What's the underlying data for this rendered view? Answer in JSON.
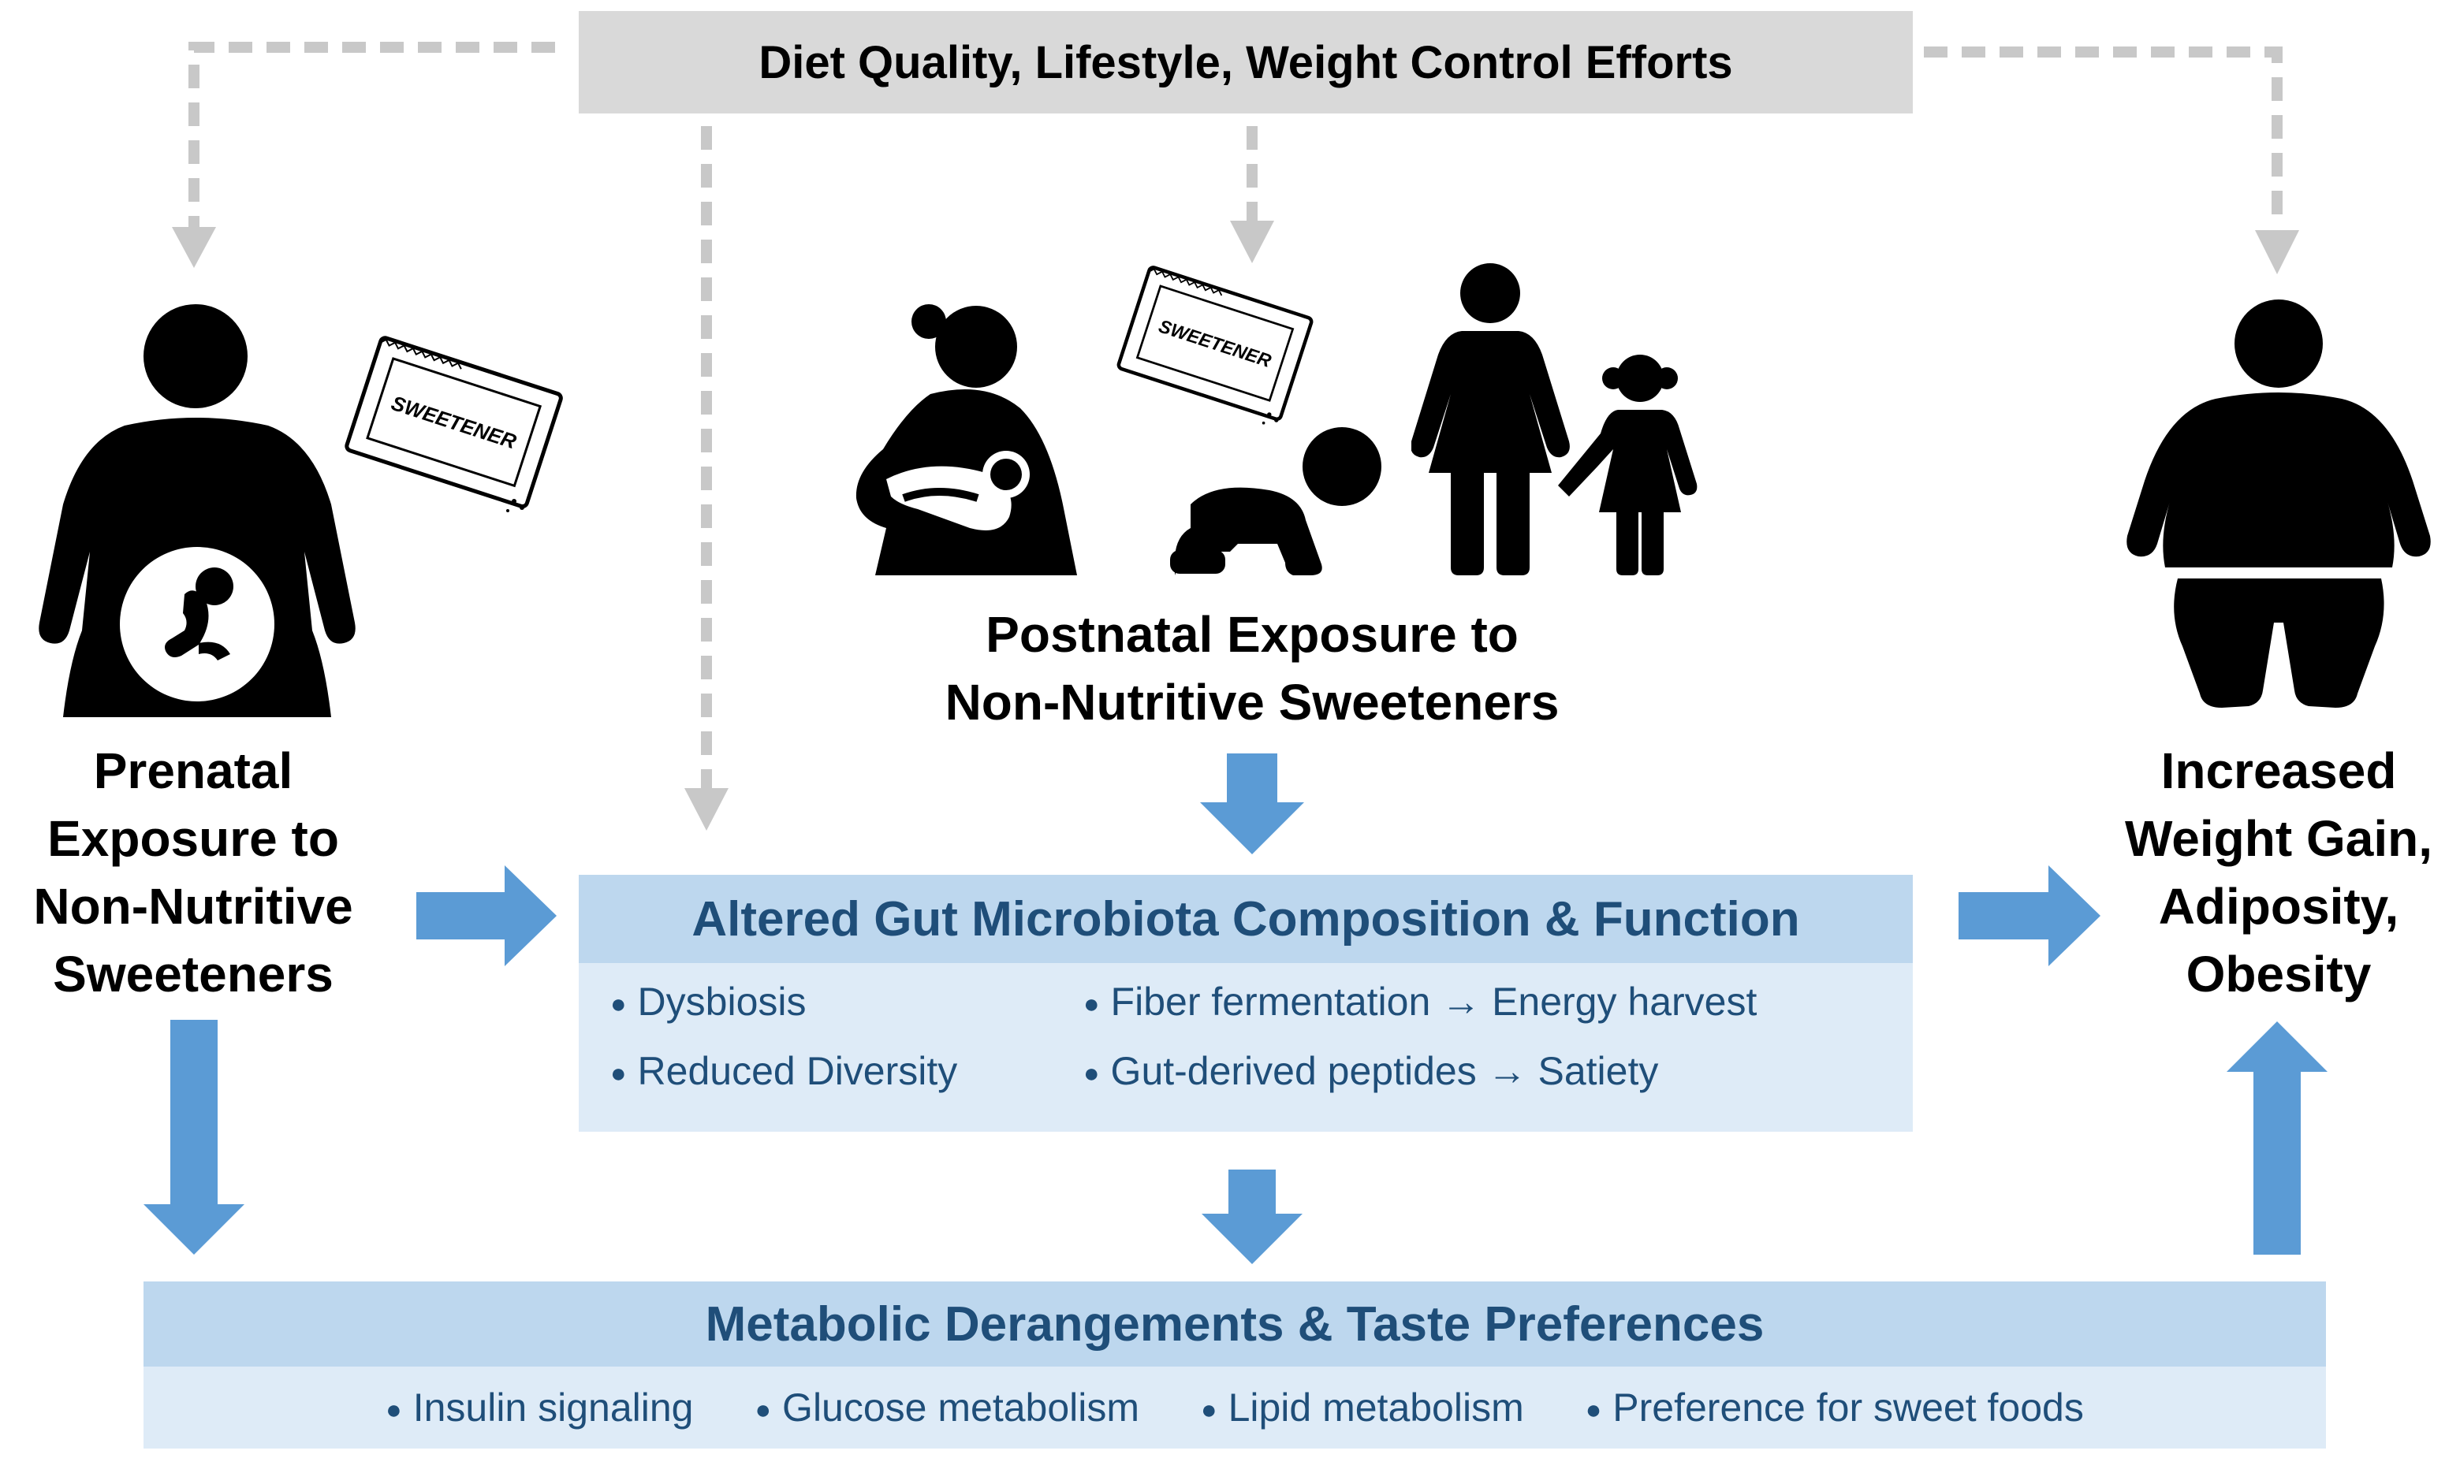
{
  "top_box": {
    "label": "Diet Quality, Lifestyle, Weight Control Efforts"
  },
  "prenatal": {
    "lines": [
      "Prenatal",
      "Exposure to",
      "Non-Nutritive",
      "Sweeteners"
    ]
  },
  "postnatal": {
    "lines": [
      "Postnatal Exposure to",
      "Non-Nutritive Sweeteners"
    ]
  },
  "outcome": {
    "lines": [
      "Increased",
      "Weight Gain,",
      "Adiposity,",
      "Obesity"
    ]
  },
  "sweetener_packet": {
    "label": "SWEETENER"
  },
  "gut": {
    "title": "Altered Gut Microbiota Composition & Function",
    "bullet_glyph": "●",
    "items": [
      "Dysbiosis",
      "Fiber fermentation → Energy harvest",
      "Reduced Diversity",
      "Gut-derived peptides → Satiety"
    ]
  },
  "metabolic": {
    "title": "Metabolic Derangements & Taste Preferences",
    "items": [
      "Insulin signaling",
      "Glucose metabolism",
      "Lipid metabolism",
      "Preference for sweet foods"
    ]
  },
  "colors": {
    "arrow_blue": "#5b9bd5",
    "dashed_gray": "#c8c8c8",
    "header_blue": "#bdd7ee",
    "body_blue": "#deebf7",
    "text_navy": "#1f4e79"
  },
  "icons": [
    "pregnant-woman-icon",
    "breastfeeding-mother-icon",
    "crawling-baby-icon",
    "adult-and-child-icon",
    "obese-person-icon",
    "sweetener-packet-icon"
  ]
}
